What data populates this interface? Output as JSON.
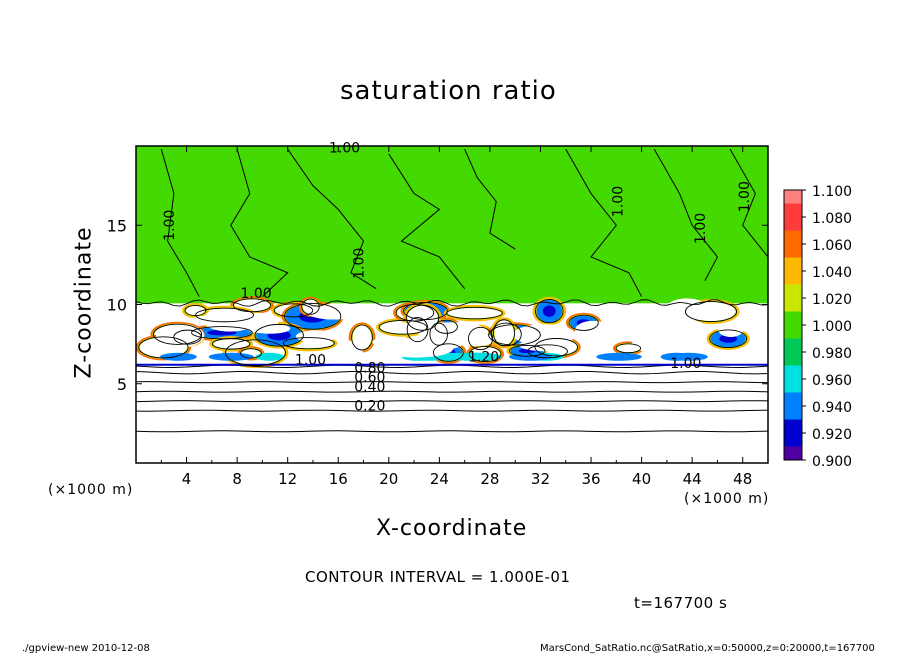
{
  "chart_data": {
    "type": "heatmap",
    "title": "saturation ratio",
    "xlabel": "X-coordinate",
    "ylabel": "Z-coordinate",
    "x_unit": "(×1000 m)",
    "y_unit": "(×1000 m)",
    "x_ticks": [
      4,
      8,
      12,
      16,
      20,
      24,
      28,
      32,
      36,
      40,
      44,
      48
    ],
    "y_ticks": [
      5,
      10,
      15
    ],
    "xlim": [
      0,
      50
    ],
    "ylim": [
      0,
      20
    ],
    "colorbar": {
      "levels": [
        "1.100",
        "1.080",
        "1.060",
        "1.040",
        "1.020",
        "1.000",
        "0.980",
        "0.960",
        "0.940",
        "0.920",
        "0.900"
      ],
      "colors": [
        "#ff8080",
        "#ff3c3c",
        "#ff6a00",
        "#ffb800",
        "#c8e600",
        "#44d900",
        "#00c856",
        "#00e0e0",
        "#0080ff",
        "#0000d0",
        "#5000a0"
      ]
    },
    "contour_labels": [
      {
        "text": "1.00",
        "x": 16.5,
        "z": 19.6
      },
      {
        "text": "1.00",
        "x": 3.0,
        "z": 15.0
      },
      {
        "text": "1.00",
        "x": 18.0,
        "z": 12.6
      },
      {
        "text": "1.00",
        "x": 38.5,
        "z": 16.5
      },
      {
        "text": "1.00",
        "x": 45.0,
        "z": 14.8
      },
      {
        "text": "1.00",
        "x": 48.5,
        "z": 16.8
      },
      {
        "text": "1.00",
        "x": 9.5,
        "z": 10.4
      },
      {
        "text": "1.00",
        "x": 13.8,
        "z": 6.2
      },
      {
        "text": "1.20",
        "x": 27.5,
        "z": 6.4
      },
      {
        "text": "1.00",
        "x": 43.5,
        "z": 6.0
      },
      {
        "text": "0.80",
        "x": 18.5,
        "z": 5.7
      },
      {
        "text": "0.60",
        "x": 18.5,
        "z": 5.1
      },
      {
        "text": "0.40",
        "x": 18.5,
        "z": 4.5
      },
      {
        "text": "0.20",
        "x": 18.5,
        "z": 3.3
      }
    ],
    "white_region_zrange": [
      6.3,
      10.2
    ],
    "contour_interval": "CONTOUR INTERVAL = 1.000E-01",
    "time_label": "t=167700 s"
  },
  "footer": {
    "left": "./gpview-new   2010-12-08",
    "right": "MarsCond_SatRatio.nc@SatRatio,x=0:50000,z=0:20000,t=167700"
  }
}
